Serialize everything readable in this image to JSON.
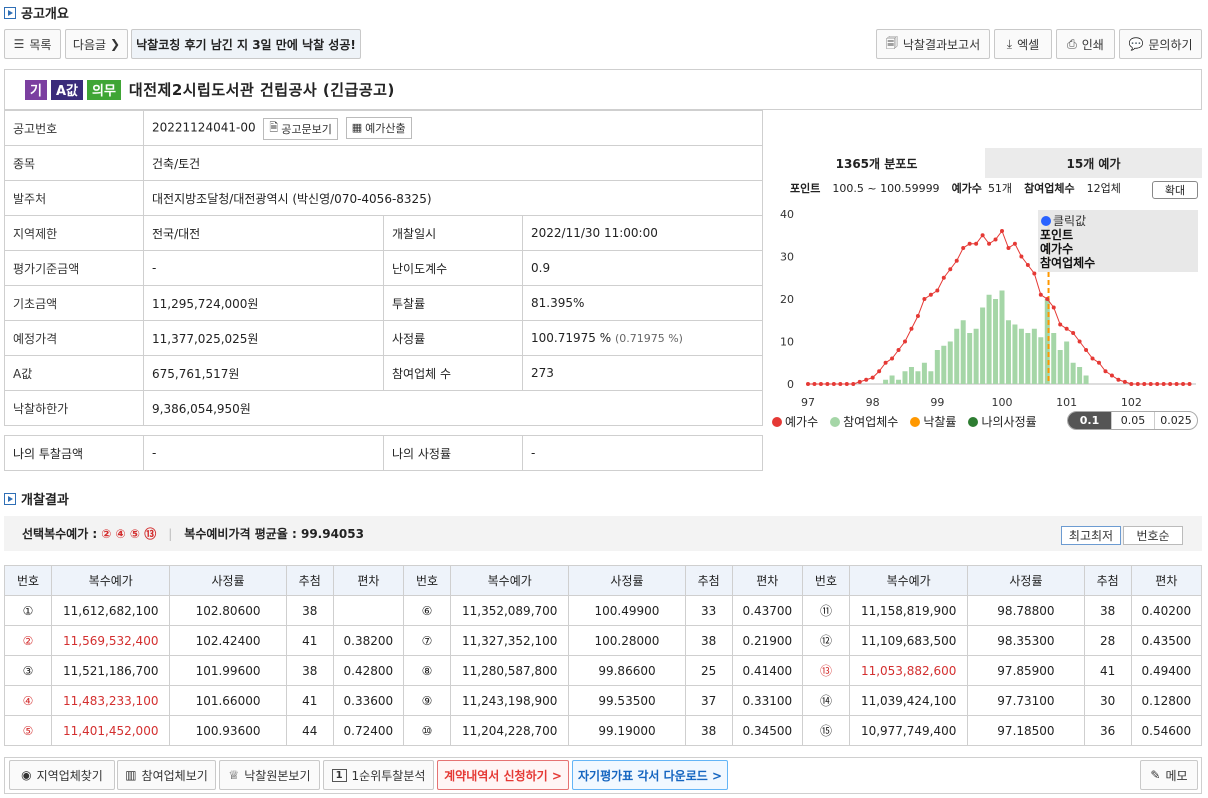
{
  "section1": {
    "title": "공고개요"
  },
  "toolbar": {
    "list": "목록",
    "next": "다음글",
    "promo": "낙찰코칭 후기 남긴 지 3일 만에 낙찰 성공!",
    "report": "낙찰결과보고서",
    "excel": "엑셀",
    "print": "인쇄",
    "inquiry": "문의하기"
  },
  "header": {
    "tags": [
      {
        "text": "기",
        "color": "#7b3fa0"
      },
      {
        "text": "A값",
        "color": "#3a2b7a"
      },
      {
        "text": "의무",
        "color": "#3fa535"
      }
    ],
    "title": "대전제2시립도서관 건립공사 (긴급공고)"
  },
  "info": {
    "notice_no_label": "공고번호",
    "notice_no": "20221124041-00",
    "view_notice": "공고문보기",
    "calc_price": "예가산출",
    "category_label": "종목",
    "category": "건축/토건",
    "client_label": "발주처",
    "client": "대전지방조달청/대전광역시 (박신영/070-4056-8325)",
    "region_label": "지역제한",
    "region": "전국/대전",
    "open_label": "개찰일시",
    "open": "2022/11/30 11:00:00",
    "eval_label": "평가기준금액",
    "eval": "-",
    "difficulty_label": "난이도계수",
    "difficulty": "0.9",
    "base_label": "기초금액",
    "base": "11,295,724,000원",
    "bid_rate_label": "투찰률",
    "bid_rate": "81.395%",
    "est_label": "예정가격",
    "est": "11,377,025,025원",
    "assess_label": "사정률",
    "assess": "100.71975 %",
    "assess_sub": "(0.71975 %)",
    "a_label": "A값",
    "a_value": "675,761,517원",
    "participants_label": "참여업체 수",
    "participants": "273",
    "min_label": "낙찰하한가",
    "min": "9,386,054,950원"
  },
  "mine": {
    "bid_label": "나의 투찰금액",
    "bid": "-",
    "rate_label": "나의 사정률",
    "rate": "-"
  },
  "chart_panel": {
    "tab1": "1365개 분포도",
    "tab2": "15개 예가",
    "point_label": "포인트",
    "point": "100.5 ~ 100.59999",
    "est_count_label": "예가수",
    "est_count": "51개",
    "part_label": "참여업체수",
    "part_count": "12업체",
    "zoom": "확대",
    "tooltip": {
      "click": "클릭값",
      "l1": "포인트",
      "l2": "예가수",
      "l3": "참여업체수"
    },
    "legend": [
      {
        "label": "예가수",
        "color": "#e53935"
      },
      {
        "label": "참여업체수",
        "color": "#a5d6a7"
      },
      {
        "label": "낙찰률",
        "color": "#ff9800"
      },
      {
        "label": "나의사정률",
        "color": "#2e7d32"
      }
    ],
    "scales": [
      "0.1",
      "0.05",
      "0.025"
    ]
  },
  "chart_data": {
    "type": "line",
    "xlim": [
      97,
      103
    ],
    "ylim": [
      0,
      40
    ],
    "xticks": [
      "97",
      "98",
      "99",
      "100",
      "101",
      "102"
    ],
    "yticks": [
      "0",
      "10",
      "20",
      "30",
      "40"
    ],
    "series": [
      {
        "name": "예가수",
        "x": [
          97.0,
          97.1,
          97.2,
          97.3,
          97.4,
          97.5,
          97.6,
          97.7,
          97.8,
          97.9,
          98.0,
          98.1,
          98.2,
          98.3,
          98.4,
          98.5,
          98.6,
          98.7,
          98.8,
          98.9,
          99.0,
          99.1,
          99.2,
          99.3,
          99.4,
          99.5,
          99.6,
          99.7,
          99.8,
          99.9,
          100.0,
          100.1,
          100.2,
          100.3,
          100.4,
          100.5,
          100.6,
          100.7,
          100.8,
          100.9,
          101.0,
          101.1,
          101.2,
          101.3,
          101.4,
          101.5,
          101.6,
          101.7,
          101.8,
          101.9,
          102.0,
          102.1,
          102.2,
          102.3,
          102.4,
          102.5,
          102.6,
          102.7,
          102.8,
          102.9
        ],
        "values": [
          0,
          0,
          0,
          0,
          0,
          0,
          0,
          0,
          0.5,
          1,
          1.5,
          3,
          5,
          6,
          8,
          10,
          13,
          16,
          20,
          21,
          22,
          25,
          27,
          29,
          32,
          33,
          33,
          35,
          33,
          34,
          36,
          32,
          33,
          30,
          28,
          26,
          21,
          20,
          18,
          14,
          13,
          12,
          10,
          8,
          6,
          5,
          3,
          2,
          1,
          0.5,
          0,
          0,
          0,
          0,
          0,
          0,
          0,
          0,
          0,
          0
        ]
      },
      {
        "name": "참여업체수",
        "x": [
          98.2,
          98.3,
          98.4,
          98.5,
          98.6,
          98.7,
          98.8,
          98.9,
          99.0,
          99.1,
          99.2,
          99.3,
          99.4,
          99.5,
          99.6,
          99.7,
          99.8,
          99.9,
          100.0,
          100.1,
          100.2,
          100.3,
          100.4,
          100.5,
          100.6,
          100.7,
          100.8,
          100.9,
          101.0,
          101.1,
          101.2,
          101.3
        ],
        "values": [
          1,
          2,
          1,
          3,
          4,
          3,
          5,
          3,
          8,
          9,
          10,
          13,
          15,
          12,
          13,
          18,
          21,
          20,
          22,
          15,
          14,
          13,
          12,
          13,
          11,
          20,
          12,
          8,
          10,
          5,
          4,
          2
        ]
      }
    ],
    "bid_rate_line_x": 100.71975
  },
  "section2": {
    "title": "개찰결과"
  },
  "selection": {
    "label": "선택복수예가 :",
    "picks": "② ④ ⑤ ⑬",
    "avg_label": "복수예비가격 평균율 : 99.94053"
  },
  "sort": {
    "a": "최고최저",
    "b": "번호순"
  },
  "result": {
    "headers": [
      "번호",
      "복수예가",
      "사정률",
      "추첨",
      "편차",
      "번호",
      "복수예가",
      "사정률",
      "추첨",
      "편차",
      "번호",
      "복수예가",
      "사정률",
      "추첨",
      "편차"
    ],
    "rows": [
      [
        {
          "n": "①",
          "p": "11,612,682,100",
          "r": "102.80600",
          "c": "38",
          "d": "",
          "sel": false
        },
        {
          "n": "⑥",
          "p": "11,352,089,700",
          "r": "100.49900",
          "c": "33",
          "d": "0.43700",
          "sel": false
        },
        {
          "n": "⑪",
          "p": "11,158,819,900",
          "r": "98.78800",
          "c": "38",
          "d": "0.40200",
          "sel": false
        }
      ],
      [
        {
          "n": "②",
          "p": "11,569,532,400",
          "r": "102.42400",
          "c": "41",
          "d": "0.38200",
          "sel": true
        },
        {
          "n": "⑦",
          "p": "11,327,352,100",
          "r": "100.28000",
          "c": "38",
          "d": "0.21900",
          "sel": false
        },
        {
          "n": "⑫",
          "p": "11,109,683,500",
          "r": "98.35300",
          "c": "28",
          "d": "0.43500",
          "sel": false
        }
      ],
      [
        {
          "n": "③",
          "p": "11,521,186,700",
          "r": "101.99600",
          "c": "38",
          "d": "0.42800",
          "sel": false
        },
        {
          "n": "⑧",
          "p": "11,280,587,800",
          "r": "99.86600",
          "c": "25",
          "d": "0.41400",
          "sel": false
        },
        {
          "n": "⑬",
          "p": "11,053,882,600",
          "r": "97.85900",
          "c": "41",
          "d": "0.49400",
          "sel": true
        }
      ],
      [
        {
          "n": "④",
          "p": "11,483,233,100",
          "r": "101.66000",
          "c": "41",
          "d": "0.33600",
          "sel": true
        },
        {
          "n": "⑨",
          "p": "11,243,198,900",
          "r": "99.53500",
          "c": "37",
          "d": "0.33100",
          "sel": false
        },
        {
          "n": "⑭",
          "p": "11,039,424,100",
          "r": "97.73100",
          "c": "30",
          "d": "0.12800",
          "sel": false
        }
      ],
      [
        {
          "n": "⑤",
          "p": "11,401,452,000",
          "r": "100.93600",
          "c": "44",
          "d": "0.72400",
          "sel": true
        },
        {
          "n": "⑩",
          "p": "11,204,228,700",
          "r": "99.19000",
          "c": "38",
          "d": "0.34500",
          "sel": false
        },
        {
          "n": "⑮",
          "p": "10,977,749,400",
          "r": "97.18500",
          "c": "36",
          "d": "0.54600",
          "sel": false
        }
      ]
    ]
  },
  "bottom": {
    "region": "지역업체찾기",
    "participants": "참여업체보기",
    "original": "낙찰원본보기",
    "first": "1순위투찰분석",
    "contract": "계약내역서 신청하기 >",
    "self_eval": "자기평가표 각서 다운로드 >",
    "memo": "메모"
  }
}
